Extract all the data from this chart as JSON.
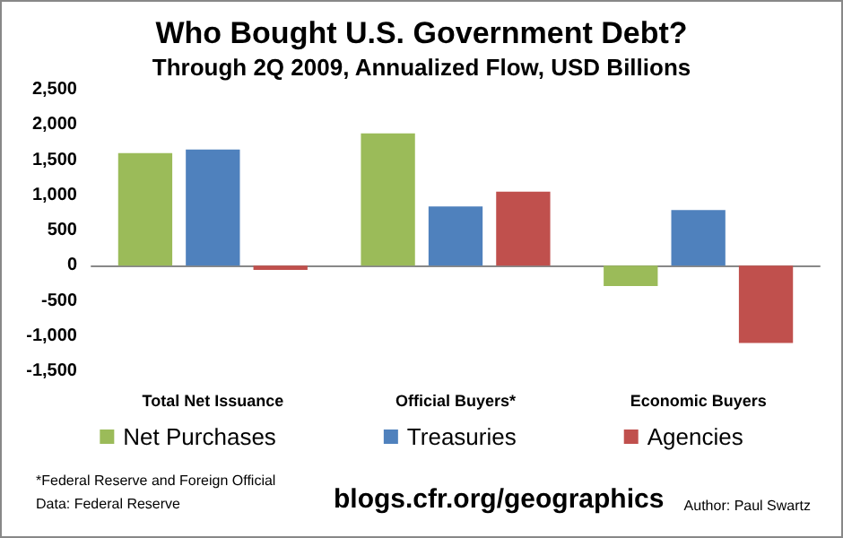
{
  "chart_data": {
    "type": "bar",
    "title": "Who Bought U.S. Government Debt?",
    "subtitle": "Through 2Q 2009, Annualized Flow, USD Billions",
    "categories": [
      "Total Net Issuance",
      "Official Buyers*",
      "Economic Buyers"
    ],
    "series": [
      {
        "name": "Net Purchases",
        "color": "#9bbb59",
        "values": [
          1600,
          1880,
          -290
        ]
      },
      {
        "name": "Treasuries",
        "color": "#4f81bd",
        "values": [
          1650,
          840,
          790
        ]
      },
      {
        "name": "Agencies",
        "color": "#c0504d",
        "values": [
          -60,
          1050,
          -1100
        ]
      }
    ],
    "ylim": [
      -1500,
      2500
    ],
    "yticks": [
      {
        "value": -1500,
        "label": "-1,500"
      },
      {
        "value": -1000,
        "label": "-1,000"
      },
      -500,
      0,
      500,
      {
        "value": 1000,
        "label": "1,000"
      },
      {
        "value": 1500,
        "label": "1,500"
      },
      {
        "value": 2000,
        "label": "2,000"
      },
      {
        "value": 2500,
        "label": "2,500"
      }
    ],
    "legend": "bottom",
    "annotations": [
      "*Federal Reserve and Foreign Official",
      "Data: Federal Reserve",
      "blogs.cfr.org/geographics",
      "Author: Paul Swartz"
    ]
  }
}
